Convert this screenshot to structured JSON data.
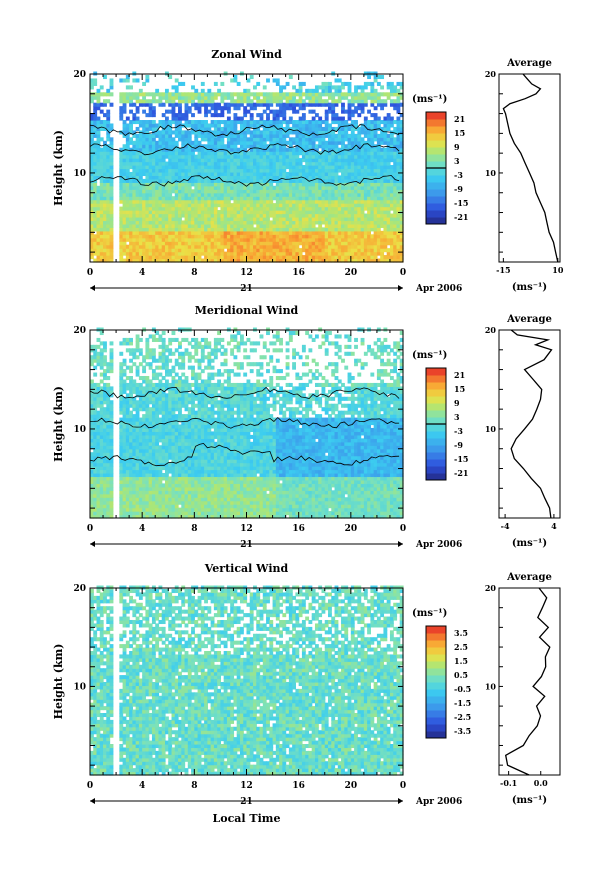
{
  "figure": {
    "xlabel": "Local Time",
    "date_label": "Apr 2006",
    "day_label": "21",
    "units_label": "(ms⁻¹)",
    "profile_title": "Average",
    "ylabel": "Height (km)"
  },
  "chart_data": [
    {
      "type": "heatmap",
      "title": "Zonal Wind",
      "ylabel": "Height (km)",
      "xlabel": "",
      "x_ticks": [
        "0",
        "4",
        "8",
        "12",
        "16",
        "20",
        "0"
      ],
      "y_ticks": [
        "20",
        "10"
      ],
      "xlim_hours": [
        0,
        24
      ],
      "ylim_km": [
        1,
        20
      ],
      "colorbar": {
        "units": "(ms⁻¹)",
        "ticks": [
          "21",
          "15",
          "9",
          "3",
          "-3",
          "-9",
          "-15",
          "-21"
        ],
        "range": [
          -24,
          24
        ],
        "zero_contour": true
      },
      "profile": {
        "title": "Average",
        "xlabel": "(ms⁻¹)",
        "x_ticks": [
          "-15",
          "10"
        ],
        "y_ticks": [
          "20",
          "10"
        ],
        "xlim": [
          -17,
          11
        ],
        "height_km": [
          1,
          2,
          3,
          4,
          5,
          6,
          7,
          8,
          9,
          10,
          11,
          12,
          13,
          14,
          15,
          16,
          16.5,
          17,
          17.5,
          18,
          18.5,
          19,
          19.5,
          20
        ],
        "value": [
          10,
          9,
          8,
          6,
          5,
          4,
          2,
          0,
          -1,
          -3,
          -5,
          -7,
          -10,
          -12,
          -13,
          -14,
          -15,
          -12,
          -5,
          0,
          2,
          -2,
          -4,
          -6
        ]
      }
    },
    {
      "type": "heatmap",
      "title": "Meridional Wind",
      "ylabel": "Height (km)",
      "xlabel": "",
      "x_ticks": [
        "0",
        "4",
        "8",
        "12",
        "16",
        "20",
        "0"
      ],
      "y_ticks": [
        "20",
        "10"
      ],
      "xlim_hours": [
        0,
        24
      ],
      "ylim_km": [
        1,
        20
      ],
      "colorbar": {
        "units": "(ms⁻¹)",
        "ticks": [
          "21",
          "15",
          "9",
          "3",
          "-3",
          "-9",
          "-15",
          "-21"
        ],
        "range": [
          -24,
          24
        ],
        "zero_contour": true
      },
      "profile": {
        "title": "Average",
        "xlabel": "(ms⁻¹)",
        "x_ticks": [
          "-4",
          "4"
        ],
        "y_ticks": [
          "20",
          "10"
        ],
        "xlim": [
          -5,
          5
        ],
        "height_km": [
          1,
          2,
          3,
          4,
          5,
          6,
          7,
          8,
          9,
          10,
          11,
          12,
          13,
          14,
          15,
          16,
          17,
          18,
          18.5,
          19,
          19.5,
          20
        ],
        "value": [
          3.5,
          3.3,
          2.5,
          1.8,
          0.3,
          -1.0,
          -2.5,
          -3.0,
          -2.2,
          -0.8,
          0.5,
          1.2,
          1.8,
          2.0,
          0.6,
          -0.8,
          2.4,
          3.6,
          1.0,
          3.0,
          -2.0,
          -3.0
        ]
      }
    },
    {
      "type": "heatmap",
      "title": "Vertical Wind",
      "ylabel": "Height (km)",
      "xlabel": "Local Time",
      "x_ticks": [
        "0",
        "4",
        "8",
        "12",
        "16",
        "20",
        "0"
      ],
      "y_ticks": [
        "20",
        "10"
      ],
      "xlim_hours": [
        0,
        24
      ],
      "ylim_km": [
        1,
        20
      ],
      "colorbar": {
        "units": "(ms⁻¹)",
        "ticks": [
          "3.5",
          "2.5",
          "1.5",
          "0.5",
          "-0.5",
          "-1.5",
          "-2.5",
          "-3.5"
        ],
        "range": [
          -4,
          4
        ],
        "zero_contour": false
      },
      "profile": {
        "title": "Average",
        "xlabel": "(ms⁻¹)",
        "x_ticks": [
          "-0.1",
          "0.0"
        ],
        "y_ticks": [
          "20",
          "10"
        ],
        "xlim": [
          -0.13,
          0.06
        ],
        "height_km": [
          1,
          2,
          3,
          4,
          5,
          6,
          7,
          8,
          9,
          10,
          11,
          12,
          13,
          14,
          15,
          16,
          17,
          18,
          19,
          20
        ],
        "value": [
          -0.04,
          -0.1,
          -0.11,
          -0.06,
          -0.03,
          -0.01,
          0.0,
          -0.01,
          0.01,
          -0.02,
          0.0,
          0.01,
          0.02,
          0.03,
          0.0,
          0.02,
          -0.01,
          0.01,
          0.02,
          0.0
        ]
      }
    }
  ]
}
